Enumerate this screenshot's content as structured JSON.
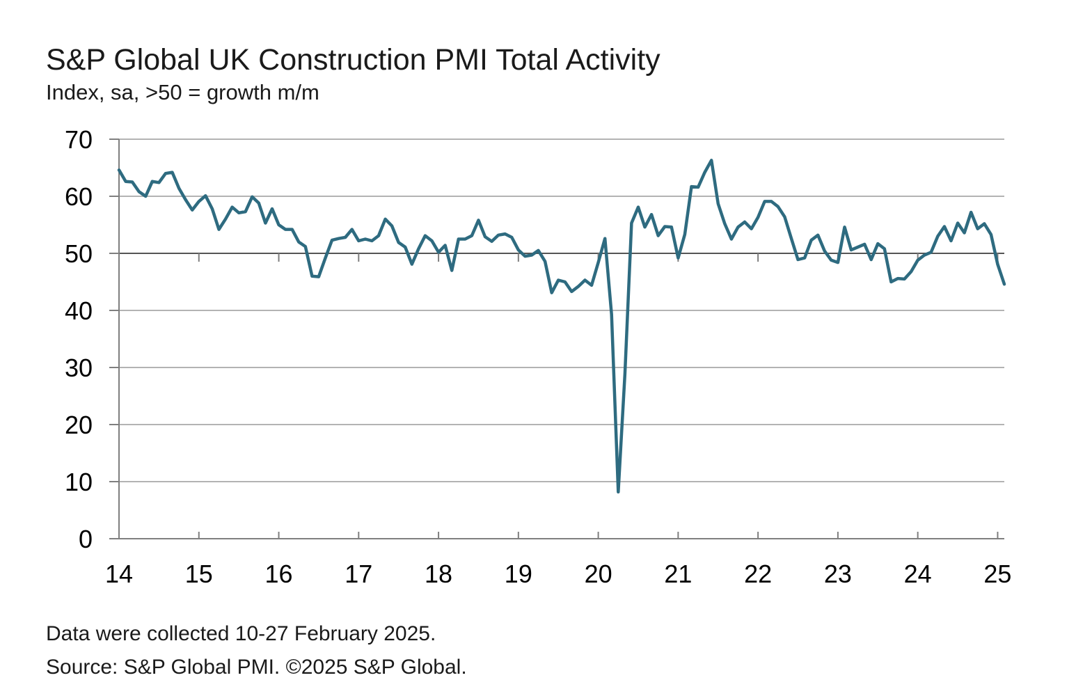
{
  "header": {
    "title": "S&P Global UK Construction PMI Total Activity",
    "subtitle": "Index, sa, >50 = growth m/m"
  },
  "footer": {
    "collection_note": "Data were collected 10-27 February 2025.",
    "source": "Source: S&P Global PMI. ©2025 S&P Global."
  },
  "colors": {
    "line": "#2e6b80",
    "grid": "#b3b3b3",
    "axis": "#7f7f7f",
    "reference_line": "#555555"
  },
  "chart_data": {
    "type": "line",
    "title": "S&P Global UK Construction PMI Total Activity",
    "subtitle": "Index, sa, >50 = growth m/m",
    "xlabel": "",
    "ylabel": "",
    "ylim": [
      0,
      70
    ],
    "yticks": [
      0,
      10,
      20,
      30,
      40,
      50,
      60,
      70
    ],
    "x_tick_labels": [
      "14",
      "15",
      "16",
      "17",
      "18",
      "19",
      "20",
      "21",
      "22",
      "23",
      "24",
      "25"
    ],
    "x_start": "2014-01",
    "x_end": "2025-02",
    "reference_line": 50,
    "grid": true,
    "legend": "none",
    "series": [
      {
        "values": [
          64.6,
          62.6,
          62.5,
          60.8,
          60.0,
          62.6,
          62.4,
          64.0,
          64.2,
          61.4,
          59.4,
          57.6,
          59.1,
          60.1,
          57.8,
          54.2,
          56.0,
          58.1,
          57.1,
          57.3,
          59.9,
          58.8,
          55.3,
          57.8,
          55.0,
          54.2,
          54.2,
          52.0,
          51.2,
          46.0,
          45.9,
          49.2,
          52.3,
          52.6,
          52.8,
          54.2,
          52.2,
          52.5,
          52.2,
          53.1,
          56.0,
          54.8,
          51.9,
          51.1,
          48.1,
          50.8,
          53.1,
          52.2,
          50.2,
          51.4,
          47.0,
          52.5,
          52.5,
          53.1,
          55.8,
          52.9,
          52.1,
          53.2,
          53.4,
          52.8,
          50.6,
          49.5,
          49.7,
          50.5,
          48.6,
          43.1,
          45.3,
          45.0,
          43.3,
          44.2,
          45.3,
          44.4,
          48.4,
          52.6,
          39.3,
          8.2,
          28.9,
          55.3,
          58.1,
          54.6,
          56.8,
          53.1,
          54.7,
          54.6,
          49.2,
          53.3,
          61.7,
          61.6,
          64.2,
          66.3,
          58.7,
          55.2,
          52.5,
          54.6,
          55.5,
          54.3,
          56.3,
          59.1,
          59.1,
          58.2,
          56.4,
          52.6,
          48.9,
          49.2,
          52.3,
          53.2,
          50.4,
          48.8,
          48.4,
          54.6,
          50.6,
          51.1,
          51.6,
          48.9,
          51.7,
          50.8,
          45.0,
          45.6,
          45.5,
          46.8,
          48.8,
          49.7,
          50.2,
          53.0,
          54.7,
          52.2,
          55.3,
          53.6,
          57.2,
          54.3,
          55.2,
          53.3,
          48.1,
          44.6
        ]
      }
    ]
  }
}
